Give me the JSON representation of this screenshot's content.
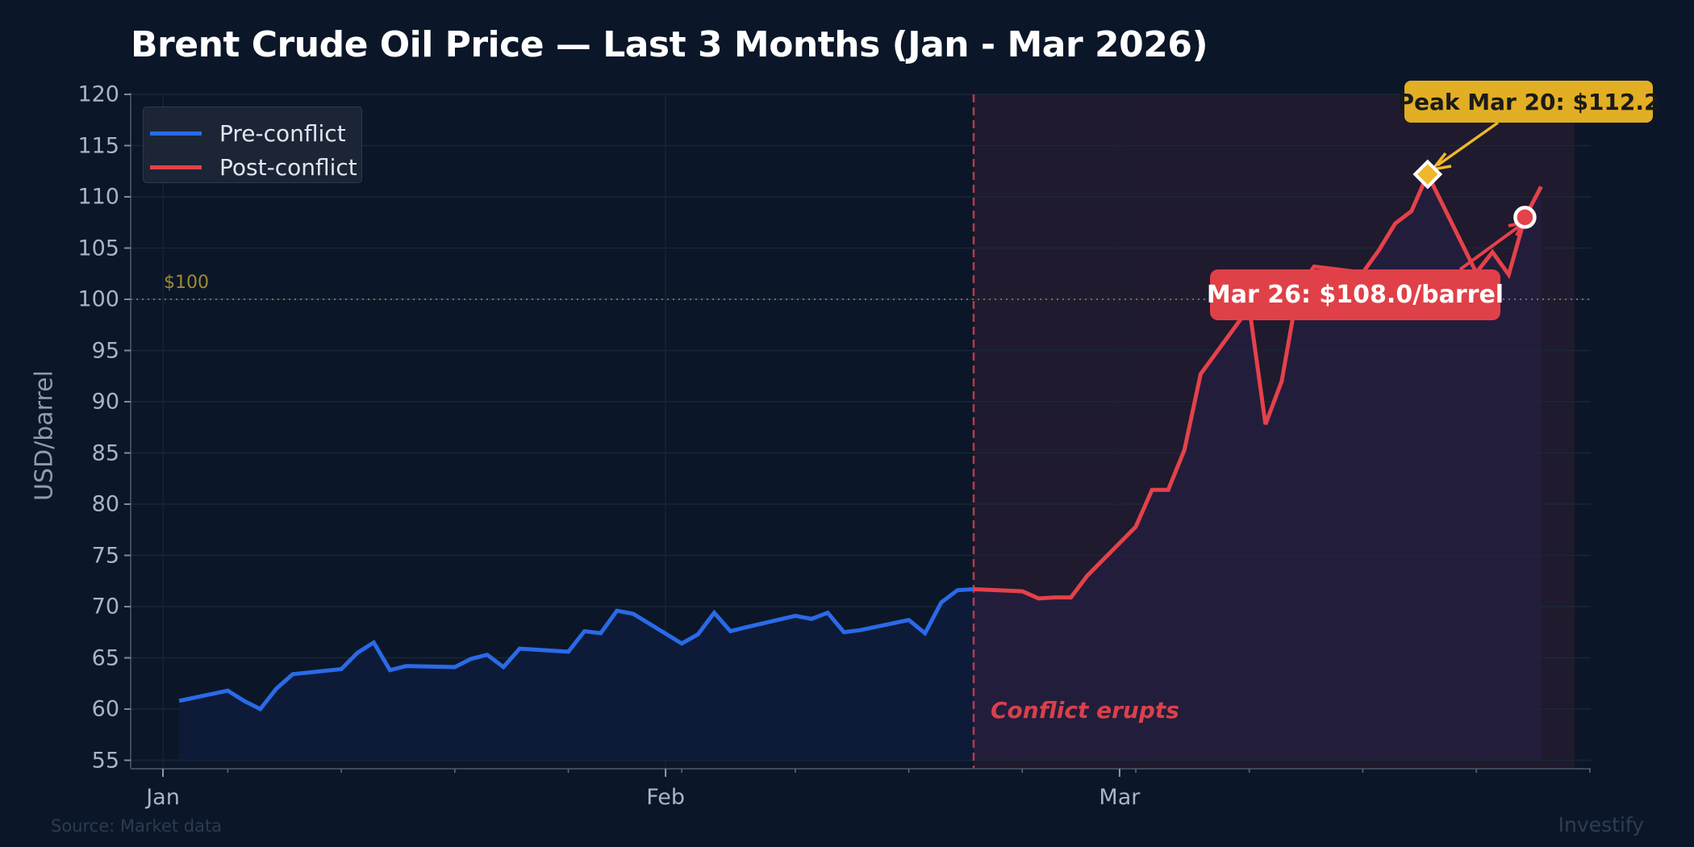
{
  "chart_data": {
    "type": "line",
    "title": "Brent Crude Oil Price — Last 3 Months (Jan - Mar 2026)",
    "xlabel": "",
    "ylabel": "USD/barrel",
    "ylim": [
      55,
      120
    ],
    "yticks": [
      55,
      60,
      65,
      70,
      75,
      80,
      85,
      90,
      95,
      100,
      105,
      110,
      115,
      120
    ],
    "xticks": [
      {
        "label": "Jan",
        "day": 0
      },
      {
        "label": "Feb",
        "day": 31
      },
      {
        "label": "Mar",
        "day": 59
      }
    ],
    "grid": true,
    "legend_position": "upper left",
    "series": [
      {
        "name": "Pre-conflict",
        "color": "#2a6ae8",
        "points": [
          {
            "date": "Jan 2",
            "day": 1,
            "value": 60.8
          },
          {
            "date": "Jan 5",
            "day": 4,
            "value": 61.8
          },
          {
            "date": "Jan 6",
            "day": 5,
            "value": 60.8
          },
          {
            "date": "Jan 7",
            "day": 6,
            "value": 60.0
          },
          {
            "date": "Jan 8",
            "day": 7,
            "value": 62.0
          },
          {
            "date": "Jan 9",
            "day": 8,
            "value": 63.4
          },
          {
            "date": "Jan 12",
            "day": 11,
            "value": 63.9
          },
          {
            "date": "Jan 13",
            "day": 12,
            "value": 65.5
          },
          {
            "date": "Jan 14",
            "day": 13,
            "value": 66.5
          },
          {
            "date": "Jan 15",
            "day": 14,
            "value": 63.8
          },
          {
            "date": "Jan 16",
            "day": 15,
            "value": 64.2
          },
          {
            "date": "Jan 19",
            "day": 18,
            "value": 64.1
          },
          {
            "date": "Jan 20",
            "day": 19,
            "value": 64.9
          },
          {
            "date": "Jan 21",
            "day": 20,
            "value": 65.3
          },
          {
            "date": "Jan 22",
            "day": 21,
            "value": 64.1
          },
          {
            "date": "Jan 23",
            "day": 22,
            "value": 65.9
          },
          {
            "date": "Jan 26",
            "day": 25,
            "value": 65.6
          },
          {
            "date": "Jan 27",
            "day": 26,
            "value": 67.6
          },
          {
            "date": "Jan 28",
            "day": 27,
            "value": 67.4
          },
          {
            "date": "Jan 29",
            "day": 28,
            "value": 69.6
          },
          {
            "date": "Jan 30",
            "day": 29,
            "value": 69.3
          },
          {
            "date": "Feb 2",
            "day": 32,
            "value": 66.4
          },
          {
            "date": "Feb 3",
            "day": 33,
            "value": 67.3
          },
          {
            "date": "Feb 4",
            "day": 34,
            "value": 69.4
          },
          {
            "date": "Feb 5",
            "day": 35,
            "value": 67.6
          },
          {
            "date": "Feb 6",
            "day": 36,
            "value": 68.0
          },
          {
            "date": "Feb 9",
            "day": 39,
            "value": 69.1
          },
          {
            "date": "Feb 10",
            "day": 40,
            "value": 68.8
          },
          {
            "date": "Feb 11",
            "day": 41,
            "value": 69.4
          },
          {
            "date": "Feb 12",
            "day": 42,
            "value": 67.5
          },
          {
            "date": "Feb 13",
            "day": 43,
            "value": 67.7
          },
          {
            "date": "Feb 16",
            "day": 46,
            "value": 68.7
          },
          {
            "date": "Feb 17",
            "day": 47,
            "value": 67.4
          },
          {
            "date": "Feb 18",
            "day": 48,
            "value": 70.4
          },
          {
            "date": "Feb 19",
            "day": 49,
            "value": 71.6
          },
          {
            "date": "Feb 20",
            "day": 50,
            "value": 71.7
          }
        ]
      },
      {
        "name": "Post-conflict",
        "color": "#e5414a",
        "points": [
          {
            "date": "Feb 20",
            "day": 50,
            "value": 71.7
          },
          {
            "date": "Feb 23",
            "day": 53,
            "value": 71.5
          },
          {
            "date": "Feb 24",
            "day": 54,
            "value": 70.8
          },
          {
            "date": "Feb 25",
            "day": 55,
            "value": 70.9
          },
          {
            "date": "Feb 26",
            "day": 56,
            "value": 70.9
          },
          {
            "date": "Feb 27",
            "day": 57,
            "value": 73.0
          },
          {
            "date": "Mar 2",
            "day": 60,
            "value": 77.8
          },
          {
            "date": "Mar 3",
            "day": 61,
            "value": 81.4
          },
          {
            "date": "Mar 4",
            "day": 62,
            "value": 81.4
          },
          {
            "date": "Mar 5",
            "day": 63,
            "value": 85.3
          },
          {
            "date": "Mar 6",
            "day": 64,
            "value": 92.7
          },
          {
            "date": "Mar 9",
            "day": 67,
            "value": 99.2
          },
          {
            "date": "Mar 10",
            "day": 68,
            "value": 87.8
          },
          {
            "date": "Mar 11",
            "day": 69,
            "value": 92.0
          },
          {
            "date": "Mar 12",
            "day": 70,
            "value": 101.0
          },
          {
            "date": "Mar 13",
            "day": 71,
            "value": 103.2
          },
          {
            "date": "Mar 16",
            "day": 74,
            "value": 102.6
          },
          {
            "date": "Mar 17",
            "day": 75,
            "value": 104.8
          },
          {
            "date": "Mar 18",
            "day": 76,
            "value": 107.4
          },
          {
            "date": "Mar 19",
            "day": 77,
            "value": 108.6
          },
          {
            "date": "Mar 20",
            "day": 78,
            "value": 112.2
          },
          {
            "date": "Mar 23",
            "day": 81,
            "value": 102.6
          },
          {
            "date": "Mar 24",
            "day": 82,
            "value": 104.6
          },
          {
            "date": "Mar 25",
            "day": 83,
            "value": 102.4
          },
          {
            "date": "Mar 26",
            "day": 84,
            "value": 108.0
          },
          {
            "date": "Mar 27",
            "day": 85,
            "value": 111.0
          }
        ]
      }
    ],
    "reference_lines": [
      {
        "type": "horizontal",
        "value": 100,
        "label": "$100",
        "color": "#a08a34",
        "style": "dotted"
      },
      {
        "type": "vertical",
        "day": 50,
        "date": "Feb 20",
        "label": "Conflict erupts",
        "color": "#c2414d",
        "style": "dashed"
      }
    ],
    "shaded_region": {
      "from_day": 50,
      "to_day": 87,
      "label": "conflict period"
    },
    "annotations": [
      {
        "text": "Peak Mar 20: $112.2",
        "day": 78,
        "value": 112.2,
        "marker": "diamond",
        "color": "#e2ae24"
      },
      {
        "text": "Mar 26: $108.0/barrel",
        "day": 84,
        "value": 108.0,
        "marker": "circle",
        "color": "#e04048"
      }
    ]
  },
  "title": "Brent Crude Oil Price — Last 3 Months (Jan - Mar 2026)",
  "legend": {
    "items": [
      {
        "label": "Pre-conflict",
        "color": "#2a6ae8"
      },
      {
        "label": "Post-conflict",
        "color": "#e5414a"
      }
    ]
  },
  "axes": {
    "ylabel": "USD/barrel",
    "ref_label": "$100",
    "conflict_label": "Conflict erupts"
  },
  "annotations": {
    "peak": "Peak Mar 20: $112.2",
    "current": "Mar 26: $108.0/barrel"
  },
  "footer": {
    "source": "Source: Market data",
    "brand": "Investify"
  },
  "colors": {
    "background": "#0b1628",
    "pre": "#2a6ae8",
    "post": "#e5414a",
    "peak": "#e2ae24",
    "reference": "#a08a34"
  }
}
